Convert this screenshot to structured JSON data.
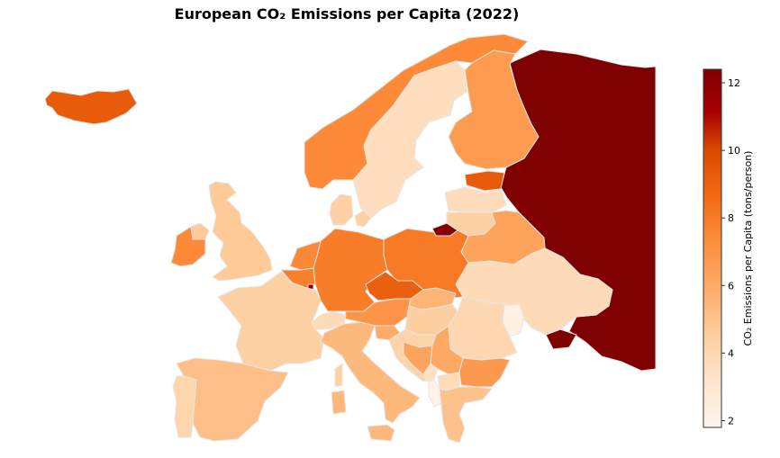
{
  "title": "European CO₂ Emissions per Capita (2022)",
  "colorbar": {
    "label": "CO₂ Emissions per Capita (tons/person)",
    "min": 1.8,
    "max": 12.4,
    "ticks": [
      "2",
      "4",
      "6",
      "8",
      "10",
      "12"
    ],
    "colormap": "OrRd-like",
    "stops": [
      "#fff5eb",
      "#fee6ce",
      "#fdd0a2",
      "#fdae6b",
      "#fd8d3c",
      "#f16913",
      "#d94801",
      "#a60000",
      "#7f0000"
    ]
  },
  "countries": [
    {
      "id": "iceland",
      "value": 9.0
    },
    {
      "id": "norway",
      "value": 7.2
    },
    {
      "id": "sweden",
      "value": 3.6
    },
    {
      "id": "finland",
      "value": 6.5
    },
    {
      "id": "russia",
      "value": 12.4
    },
    {
      "id": "estonia",
      "value": 9.0
    },
    {
      "id": "latvia",
      "value": 3.7
    },
    {
      "id": "lithuania",
      "value": 4.4
    },
    {
      "id": "kaliningrad",
      "value": 12.2
    },
    {
      "id": "belarus",
      "value": 6.2
    },
    {
      "id": "ukraine",
      "value": 3.8
    },
    {
      "id": "moldova",
      "value": 2.2
    },
    {
      "id": "poland",
      "value": 7.8
    },
    {
      "id": "germany",
      "value": 7.7
    },
    {
      "id": "denmark",
      "value": 4.4
    },
    {
      "id": "netherlands",
      "value": 7.3
    },
    {
      "id": "belgium",
      "value": 7.6
    },
    {
      "id": "luxembourg",
      "value": 12.0
    },
    {
      "id": "uk",
      "value": 4.7
    },
    {
      "id": "ireland",
      "value": 7.2
    },
    {
      "id": "northern-ireland",
      "value": 4.7
    },
    {
      "id": "france",
      "value": 4.4
    },
    {
      "id": "switzerland",
      "value": 3.8
    },
    {
      "id": "austria",
      "value": 6.8
    },
    {
      "id": "czechia",
      "value": 8.8
    },
    {
      "id": "slovakia",
      "value": 5.5
    },
    {
      "id": "hungary",
      "value": 4.5
    },
    {
      "id": "slovenia",
      "value": 5.9
    },
    {
      "id": "croatia",
      "value": 4.2
    },
    {
      "id": "bosnia",
      "value": 6.2
    },
    {
      "id": "serbia",
      "value": 6.0
    },
    {
      "id": "montenegro",
      "value": 3.4
    },
    {
      "id": "albania",
      "value": 2.0
    },
    {
      "id": "north-macedonia",
      "value": 3.8
    },
    {
      "id": "romania",
      "value": 4.0
    },
    {
      "id": "bulgaria",
      "value": 6.6
    },
    {
      "id": "greece",
      "value": 5.0
    },
    {
      "id": "italy",
      "value": 5.4
    },
    {
      "id": "sardinia",
      "value": 5.4
    },
    {
      "id": "corsica",
      "value": 4.4
    },
    {
      "id": "sicily",
      "value": 5.4
    },
    {
      "id": "spain",
      "value": 5.1
    },
    {
      "id": "portugal",
      "value": 4.1
    },
    {
      "id": "crimea",
      "value": 12.4
    }
  ]
}
